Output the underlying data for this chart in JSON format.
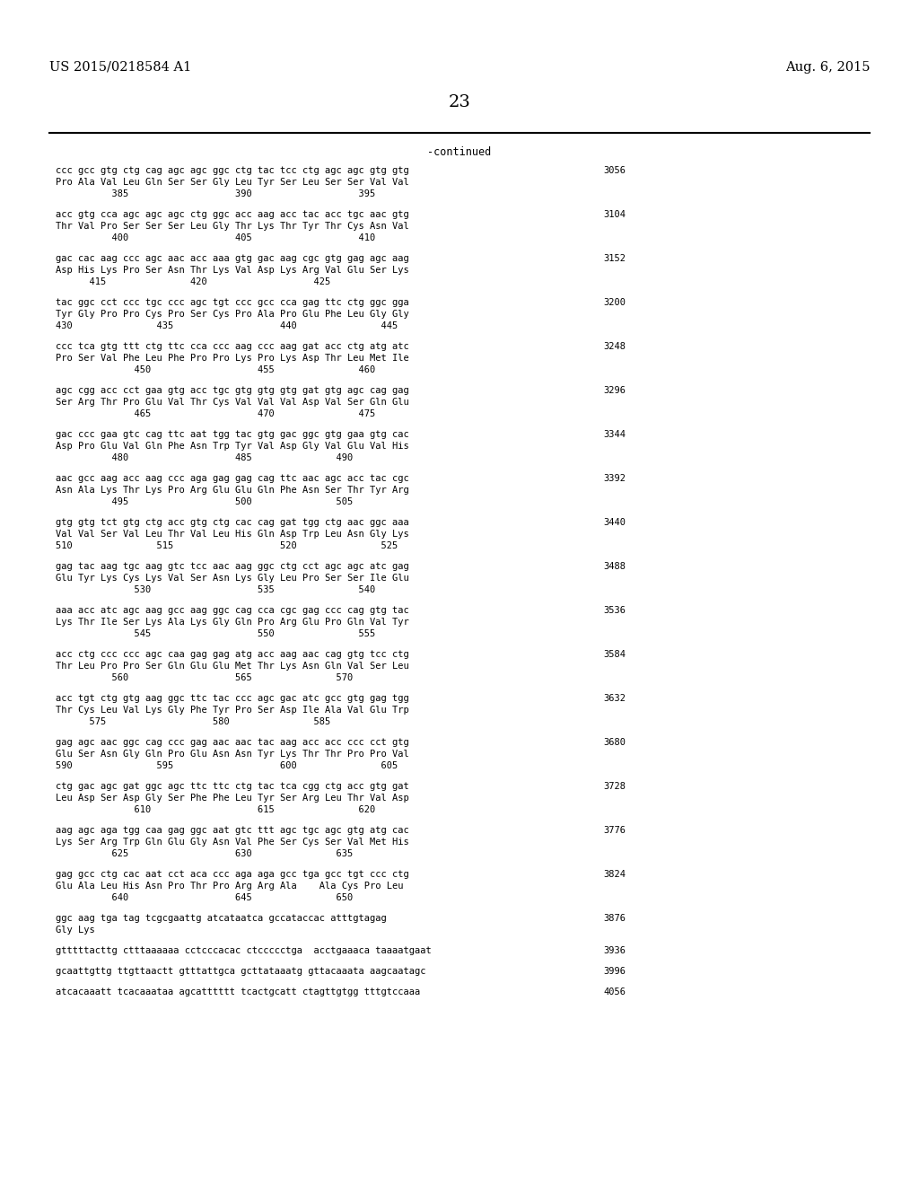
{
  "header_left": "US 2015/0218584 A1",
  "header_right": "Aug. 6, 2015",
  "page_number": "23",
  "continued_label": "-continued",
  "background_color": "#ffffff",
  "text_color": "#000000",
  "sequence_blocks": [
    {
      "dna": "ccc gcc gtg ctg cag agc agc ggc ctg tac tcc ctg agc agc gtg gtg",
      "aa": "Pro Ala Val Leu Gln Ser Ser Gly Leu Tyr Ser Leu Ser Ser Val Val",
      "nums": "          385                   390                   395",
      "bp": "3056"
    },
    {
      "dna": "acc gtg cca agc agc agc ctg ggc acc aag acc tac acc tgc aac gtg",
      "aa": "Thr Val Pro Ser Ser Ser Leu Gly Thr Lys Thr Tyr Thr Cys Asn Val",
      "nums": "          400                   405                   410",
      "bp": "3104"
    },
    {
      "dna": "gac cac aag ccc agc aac acc aaa gtg gac aag cgc gtg gag agc aag",
      "aa": "Asp His Lys Pro Ser Asn Thr Lys Val Asp Lys Arg Val Glu Ser Lys",
      "nums": "      415               420                   425",
      "bp": "3152"
    },
    {
      "dna": "tac ggc cct ccc tgc ccc agc tgt ccc gcc cca gag ttc ctg ggc gga",
      "aa": "Tyr Gly Pro Pro Cys Pro Ser Cys Pro Ala Pro Glu Phe Leu Gly Gly",
      "nums": "430               435                   440               445",
      "bp": "3200"
    },
    {
      "dna": "ccc tca gtg ttt ctg ttc cca ccc aag ccc aag gat acc ctg atg atc",
      "aa": "Pro Ser Val Phe Leu Phe Pro Pro Lys Pro Lys Asp Thr Leu Met Ile",
      "nums": "              450                   455               460",
      "bp": "3248"
    },
    {
      "dna": "agc cgg acc cct gaa gtg acc tgc gtg gtg gtg gat gtg agc cag gag",
      "aa": "Ser Arg Thr Pro Glu Val Thr Cys Val Val Val Asp Val Ser Gln Glu",
      "nums": "              465                   470               475",
      "bp": "3296"
    },
    {
      "dna": "gac ccc gaa gtc cag ttc aat tgg tac gtg gac ggc gtg gaa gtg cac",
      "aa": "Asp Pro Glu Val Gln Phe Asn Trp Tyr Val Asp Gly Val Glu Val His",
      "nums": "          480                   485               490",
      "bp": "3344"
    },
    {
      "dna": "aac gcc aag acc aag ccc aga gag gag cag ttc aac agc acc tac cgc",
      "aa": "Asn Ala Lys Thr Lys Pro Arg Glu Glu Gln Phe Asn Ser Thr Tyr Arg",
      "nums": "          495                   500               505",
      "bp": "3392"
    },
    {
      "dna": "gtg gtg tct gtg ctg acc gtg ctg cac cag gat tgg ctg aac ggc aaa",
      "aa": "Val Val Ser Val Leu Thr Val Leu His Gln Asp Trp Leu Asn Gly Lys",
      "nums": "510               515                   520               525",
      "bp": "3440"
    },
    {
      "dna": "gag tac aag tgc aag gtc tcc aac aag ggc ctg cct agc agc atc gag",
      "aa": "Glu Tyr Lys Cys Lys Val Ser Asn Lys Gly Leu Pro Ser Ser Ile Glu",
      "nums": "              530                   535               540",
      "bp": "3488"
    },
    {
      "dna": "aaa acc atc agc aag gcc aag ggc cag cca cgc gag ccc cag gtg tac",
      "aa": "Lys Thr Ile Ser Lys Ala Lys Gly Gln Pro Arg Glu Pro Gln Val Tyr",
      "nums": "              545                   550               555",
      "bp": "3536"
    },
    {
      "dna": "acc ctg ccc ccc agc caa gag gag atg acc aag aac cag gtg tcc ctg",
      "aa": "Thr Leu Pro Pro Ser Gln Glu Glu Met Thr Lys Asn Gln Val Ser Leu",
      "nums": "          560                   565               570",
      "bp": "3584"
    },
    {
      "dna": "acc tgt ctg gtg aag ggc ttc tac ccc agc gac atc gcc gtg gag tgg",
      "aa": "Thr Cys Leu Val Lys Gly Phe Tyr Pro Ser Asp Ile Ala Val Glu Trp",
      "nums": "      575                   580               585",
      "bp": "3632"
    },
    {
      "dna": "gag agc aac ggc cag ccc gag aac aac tac aag acc acc ccc cct gtg",
      "aa": "Glu Ser Asn Gly Gln Pro Glu Asn Asn Tyr Lys Thr Thr Pro Pro Val",
      "nums": "590               595                   600               605",
      "bp": "3680"
    },
    {
      "dna": "ctg gac agc gat ggc agc ttc ttc ctg tac tca cgg ctg acc gtg gat",
      "aa": "Leu Asp Ser Asp Gly Ser Phe Phe Leu Tyr Ser Arg Leu Thr Val Asp",
      "nums": "              610                   615               620",
      "bp": "3728"
    },
    {
      "dna": "aag agc aga tgg caa gag ggc aat gtc ttt agc tgc agc gtg atg cac",
      "aa": "Lys Ser Arg Trp Gln Glu Gly Asn Val Phe Ser Cys Ser Val Met His",
      "nums": "          625                   630               635",
      "bp": "3776"
    },
    {
      "dna": "gag gcc ctg cac aat cct aca ccc aga aga gcc tga gcc tgt ccc ctg",
      "aa": "Glu Ala Leu His Asn Pro Thr Pro Arg Arg Ala    Ala Cys Pro Leu",
      "nums": "          640                   645               650",
      "bp": "3824"
    },
    {
      "dna": "ggc aag tga tag tcgcgaattg atcataatca gccataccac atttgtagag",
      "aa": "Gly Lys",
      "nums": "",
      "bp": "3876"
    },
    {
      "dna": "gtttttacttg ctttaaaaaa cctcccacac ctccccctga  acctgaaaca taaaatgaat",
      "aa": "",
      "nums": "",
      "bp": "3936"
    },
    {
      "dna": "gcaattgttg ttgttaactt gtttattgca gcttataaatg gttacaaata aagcaatagc",
      "aa": "",
      "nums": "",
      "bp": "3996"
    },
    {
      "dna": "atcacaaatt tcacaaataa agcatttttt tcactgcatt ctagttgtgg tttgtccaaa",
      "aa": "",
      "nums": "",
      "bp": "4056"
    }
  ]
}
